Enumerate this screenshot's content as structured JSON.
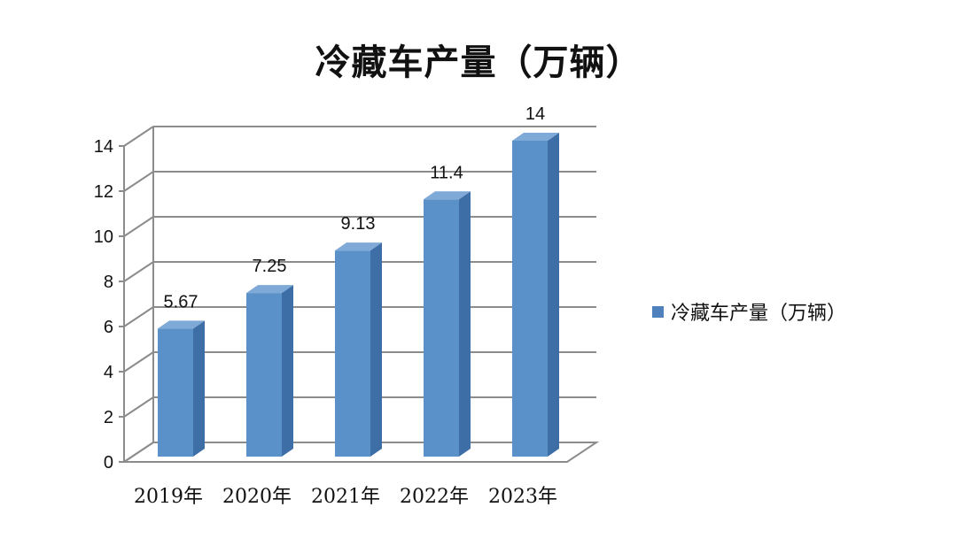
{
  "chart_data": {
    "type": "bar",
    "title": "冷藏车产量（万辆）",
    "categories": [
      "2019年",
      "2020年",
      "2021年",
      "2022年",
      "2023年"
    ],
    "series": [
      {
        "name": "冷藏车产量（万辆）",
        "values": [
          5.67,
          7.25,
          9.13,
          11.4,
          14
        ]
      }
    ],
    "data_labels": [
      "5.67",
      "7.25",
      "9.13",
      "11.4",
      "14"
    ],
    "y_ticks": [
      "0",
      "2",
      "4",
      "6",
      "8",
      "10",
      "12",
      "14"
    ],
    "ylim": [
      0,
      14
    ],
    "grid": true,
    "style": "3d-column",
    "legend_position": "right"
  },
  "colors": {
    "bar_front": "#5b91c9",
    "bar_side": "#3d6ea5",
    "bar_top": "#7fa9d6",
    "grid": "#8c8c8c",
    "legend_swatch": "#4f81bd"
  }
}
